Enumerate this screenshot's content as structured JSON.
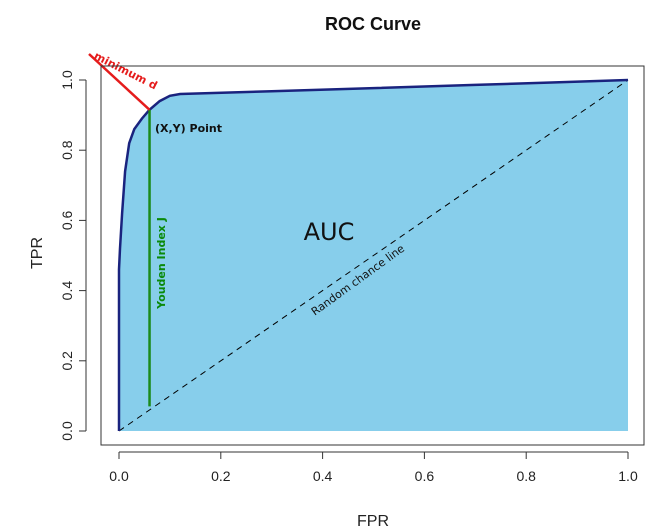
{
  "chart_data": {
    "type": "area",
    "title": "ROC Curve",
    "xlabel": "FPR",
    "ylabel": "TPR",
    "xlim": [
      0,
      1
    ],
    "ylim": [
      0,
      1
    ],
    "xticks": [
      "0.0",
      "0.2",
      "0.4",
      "0.6",
      "0.8",
      "1.0"
    ],
    "yticks": [
      "0.0",
      "0.2",
      "0.4",
      "0.6",
      "0.8",
      "1.0"
    ],
    "grid": false,
    "series": [
      {
        "x": [
          0.0,
          0.0,
          0.002,
          0.006,
          0.012,
          0.02,
          0.03,
          0.045,
          0.06,
          0.08,
          0.1,
          0.12,
          0.3,
          0.5,
          0.7,
          0.85,
          1.0
        ],
        "y": [
          0.0,
          0.46,
          0.52,
          0.62,
          0.74,
          0.82,
          0.86,
          0.89,
          0.915,
          0.94,
          0.955,
          0.96,
          0.968,
          0.977,
          0.986,
          0.993,
          1.0
        ],
        "values": [
          0.0,
          0.46,
          0.52,
          0.62,
          0.74,
          0.82,
          0.86,
          0.89,
          0.915,
          0.94,
          0.955,
          0.96,
          0.968,
          0.977,
          0.986,
          0.993,
          1.0
        ]
      },
      {
        "x": [
          0.0,
          1.0
        ],
        "y": [
          0.0,
          1.0
        ],
        "values": [
          0.0,
          1.0
        ]
      }
    ],
    "optimal_point": {
      "x": 0.06,
      "y": 0.915
    },
    "youden_line": {
      "x": 0.06,
      "y_from": 0.07,
      "y_to": 0.915
    },
    "min_distance_line": {
      "from": [
        0.0,
        1.0
      ],
      "to": [
        0.06,
        0.915
      ]
    },
    "annotations": {
      "auc": "AUC",
      "point": "(X,Y) Point",
      "youden": "Youden Index J",
      "random": "Random chance line",
      "min_distance": "minimum d"
    },
    "colors": {
      "fill": "#87ceeb",
      "curve": "#1a237e",
      "youden": "#1b8a1b",
      "min_distance": "#e51c1c",
      "diagonal": "#000000",
      "youden_text": "#0a8a0a"
    }
  }
}
